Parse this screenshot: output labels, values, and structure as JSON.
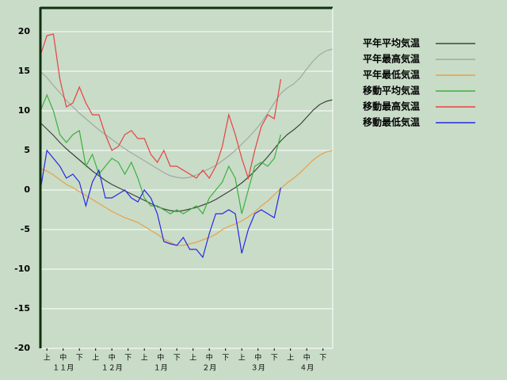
{
  "chart_data": {
    "type": "line",
    "x": [
      0,
      4,
      8,
      12,
      16,
      20,
      24,
      28,
      32,
      36,
      40,
      44,
      48,
      52,
      56,
      60,
      64,
      68,
      72,
      76,
      80,
      84,
      88,
      92,
      96,
      100,
      104,
      108,
      112,
      116,
      120,
      124,
      128,
      132,
      136,
      140,
      144,
      148,
      152,
      156,
      160,
      164,
      168,
      172,
      176,
      180
    ],
    "xlim": [
      0,
      180
    ],
    "ylim": [
      -20,
      23
    ],
    "yticks": [
      -20,
      -15,
      -10,
      -5,
      0,
      5,
      10,
      15,
      20
    ],
    "grid": true,
    "xticks": [
      {
        "value": 4,
        "label": "上"
      },
      {
        "value": 14,
        "label": "中"
      },
      {
        "value": 24,
        "label": "下"
      },
      {
        "value": 34,
        "label": "上"
      },
      {
        "value": 44,
        "label": "中"
      },
      {
        "value": 54,
        "label": "下"
      },
      {
        "value": 64,
        "label": "上"
      },
      {
        "value": 74,
        "label": "中"
      },
      {
        "value": 84,
        "label": "下"
      },
      {
        "value": 94,
        "label": "上"
      },
      {
        "value": 104,
        "label": "中"
      },
      {
        "value": 114,
        "label": "下"
      },
      {
        "value": 124,
        "label": "上"
      },
      {
        "value": 134,
        "label": "中"
      },
      {
        "value": 144,
        "label": "下"
      },
      {
        "value": 154,
        "label": "上"
      },
      {
        "value": 164,
        "label": "中"
      },
      {
        "value": 174,
        "label": "下"
      }
    ],
    "month_labels": [
      {
        "value": 14,
        "label": "１１月"
      },
      {
        "value": 44,
        "label": "１２月"
      },
      {
        "value": 74,
        "label": "１月"
      },
      {
        "value": 104,
        "label": "２月"
      },
      {
        "value": 134,
        "label": "３月"
      },
      {
        "value": 164,
        "label": "４月"
      }
    ],
    "series": [
      {
        "name": "平年平均気温",
        "color": "#3c463c",
        "values": [
          8.5,
          7.7,
          6.9,
          6.0,
          5.2,
          4.5,
          3.8,
          3.1,
          2.4,
          1.8,
          1.2,
          0.7,
          0.3,
          -0.1,
          -0.5,
          -0.9,
          -1.3,
          -1.7,
          -2.1,
          -2.4,
          -2.6,
          -2.7,
          -2.6,
          -2.4,
          -2.2,
          -1.9,
          -1.6,
          -1.2,
          -0.7,
          -0.2,
          0.3,
          0.9,
          1.6,
          2.4,
          3.3,
          4.2,
          5.2,
          6.2,
          7.0,
          7.6,
          8.3,
          9.2,
          10.1,
          10.8,
          11.2,
          11.4
        ]
      },
      {
        "name": "平年最高気温",
        "color": "#a0aaa0",
        "values": [
          15,
          14.2,
          13.2,
          12.3,
          11.3,
          10.5,
          9.7,
          9.0,
          8.3,
          7.6,
          7.0,
          6.4,
          5.8,
          5.2,
          4.7,
          4.2,
          3.7,
          3.2,
          2.7,
          2.2,
          1.8,
          1.6,
          1.5,
          1.6,
          1.9,
          2.3,
          2.7,
          3.1,
          3.7,
          4.3,
          5.0,
          5.8,
          6.6,
          7.5,
          8.5,
          9.7,
          11.0,
          12.2,
          12.9,
          13.4,
          14.2,
          15.3,
          16.3,
          17.1,
          17.6,
          17.8
        ]
      },
      {
        "name": "平年最低気温",
        "color": "#e8a048",
        "values": [
          2.7,
          2.4,
          1.9,
          1.3,
          0.7,
          0.3,
          -0.2,
          -0.7,
          -1.2,
          -1.7,
          -2.2,
          -2.7,
          -3.1,
          -3.5,
          -3.8,
          -4.1,
          -4.6,
          -5.1,
          -5.6,
          -6.2,
          -6.6,
          -7.0,
          -7.0,
          -6.8,
          -6.6,
          -6.3,
          -6.0,
          -5.6,
          -5.0,
          -4.6,
          -4.3,
          -3.9,
          -3.4,
          -2.8,
          -2.0,
          -1.4,
          -0.6,
          0.2,
          0.9,
          1.5,
          2.2,
          3.0,
          3.8,
          4.4,
          4.8,
          5.0
        ]
      },
      {
        "name": "移動平均気温",
        "color": "#3cb03c",
        "values": [
          10,
          12,
          10,
          7,
          6,
          7,
          7.5,
          3,
          4.5,
          2,
          3,
          4,
          3.5,
          2,
          3.5,
          1.5,
          -1,
          -2,
          -2,
          -2.5,
          -3,
          -2.5,
          -3,
          -2.5,
          -2,
          -3,
          -1,
          0,
          1,
          3,
          1.5,
          -3,
          0,
          3,
          3.5,
          3,
          4,
          7,
          null,
          null,
          null,
          null,
          null,
          null,
          null,
          null
        ]
      },
      {
        "name": "移動最高気温",
        "color": "#e84040",
        "values": [
          17,
          19.5,
          19.7,
          14,
          10.5,
          11,
          13,
          11,
          9.5,
          9.5,
          7,
          5,
          5.5,
          7,
          7.5,
          6.5,
          6.5,
          4.5,
          3.5,
          5,
          3,
          3,
          2.5,
          2,
          1.5,
          2.5,
          1.5,
          3,
          5.5,
          9.5,
          7,
          4,
          1.5,
          5,
          8,
          9.5,
          9,
          14,
          null,
          null,
          null,
          null,
          null,
          null,
          null,
          null
        ]
      },
      {
        "name": "移動最低気温",
        "color": "#2828e0",
        "values": [
          0,
          5,
          4,
          3,
          1.5,
          2,
          1,
          -2,
          1,
          2.5,
          -1,
          -1,
          -0.5,
          0,
          -1,
          -1.5,
          0,
          -1,
          -3,
          -6.5,
          -6.8,
          -7,
          -6,
          -7.5,
          -7.5,
          -8.5,
          -5.5,
          -3,
          -3,
          -2.5,
          -3,
          -8,
          -5,
          -3,
          -2.5,
          -3,
          -3.5,
          0.3,
          null,
          null,
          null,
          null,
          null,
          null,
          null,
          null
        ]
      }
    ]
  }
}
